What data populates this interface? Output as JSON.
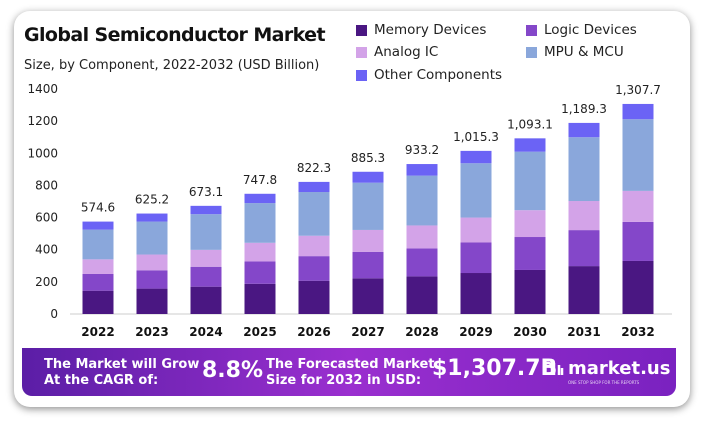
{
  "chart_data": {
    "type": "bar",
    "stacked": true,
    "title": "Global Semiconductor Market",
    "subtitle": "Size, by Component, 2022-2032 (USD Billion)",
    "categories": [
      "2022",
      "2023",
      "2024",
      "2025",
      "2026",
      "2027",
      "2028",
      "2029",
      "2030",
      "2031",
      "2032"
    ],
    "totals": [
      "574.6",
      "625.2",
      "673.1",
      "747.8",
      "822.3",
      "885.3",
      "933.2",
      "1,015.3",
      "1,093.1",
      "1,189.3",
      "1,307.7"
    ],
    "series": [
      {
        "name": "Memory Devices",
        "color": "#4a1782",
        "values": [
          145,
          158,
          170,
          188,
          207,
          222,
          234,
          255,
          274,
          298,
          330
        ]
      },
      {
        "name": "Logic Devices",
        "color": "#8447c9",
        "values": [
          104,
          114,
          124,
          139,
          153,
          165,
          174,
          190,
          205,
          224,
          243
        ]
      },
      {
        "name": "Analog IC",
        "color": "#d3a3e8",
        "values": [
          91,
          98,
          105,
          116,
          127,
          136,
          143,
          155,
          167,
          181,
          193
        ]
      },
      {
        "name": "MPU & MCU",
        "color": "#8aa7db",
        "values": [
          185,
          205,
          222,
          247,
          272,
          294,
          310,
          338,
          364,
          397,
          446
        ]
      },
      {
        "name": "Other Components",
        "color": "#6b63f5",
        "values": [
          50,
          50,
          52,
          58,
          63,
          68,
          72,
          77,
          83,
          89,
          95
        ]
      }
    ],
    "ylim": [
      0,
      1400
    ],
    "yticks": [
      "0",
      "200",
      "400",
      "600",
      "800",
      "1000",
      "1200",
      "1400"
    ],
    "grid": false,
    "legend_position": "top-right"
  },
  "banner": {
    "cagr_label_1": "The Market will Grow",
    "cagr_label_2": "At the CAGR of:",
    "cagr_value": "8.8%",
    "forecast_label_1": "The Forecasted Market",
    "forecast_label_2": "Size for 2032 in USD:",
    "forecast_value": "$1,307.7B",
    "logo_text": "market.us",
    "logo_tagline": "ONE STOP SHOP FOR THE REPORTS"
  }
}
